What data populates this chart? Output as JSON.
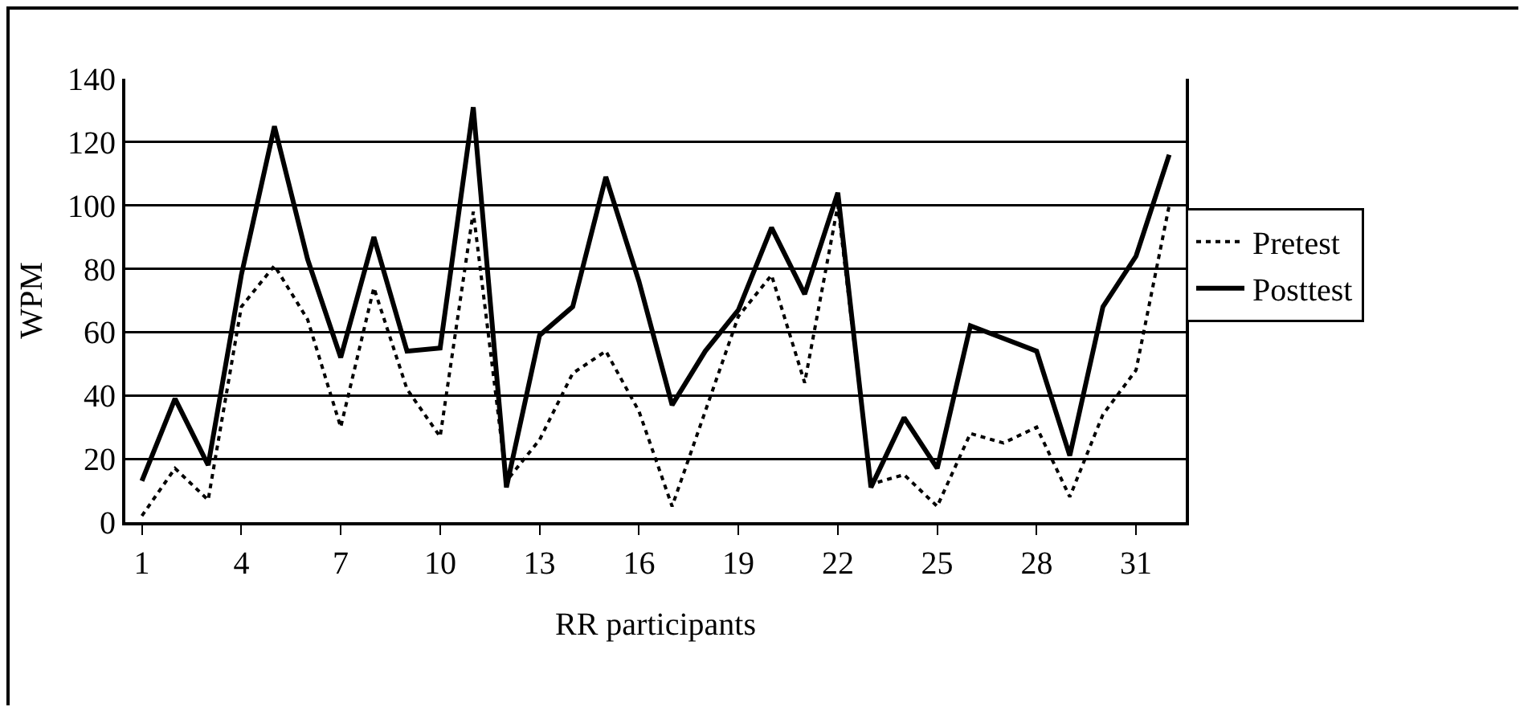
{
  "chart_data": {
    "type": "line",
    "xlabel": "RR participants",
    "ylabel": "WPM",
    "x": [
      1,
      2,
      3,
      4,
      5,
      6,
      7,
      8,
      9,
      10,
      11,
      12,
      13,
      14,
      15,
      16,
      17,
      18,
      19,
      20,
      21,
      22,
      23,
      24,
      25,
      26,
      27,
      28,
      29,
      30,
      31,
      32
    ],
    "series": [
      {
        "name": "Pretest",
        "color": "#000000",
        "line_style": "dotted",
        "values": [
          2,
          17,
          7,
          68,
          81,
          64,
          30,
          74,
          42,
          27,
          98,
          13,
          26,
          47,
          54,
          35,
          5,
          35,
          65,
          78,
          44,
          100,
          12,
          15,
          5,
          28,
          25,
          30,
          8,
          34,
          48,
          100
        ]
      },
      {
        "name": "Posttest",
        "color": "#000000",
        "line_style": "solid",
        "values": [
          13,
          39,
          18,
          78,
          125,
          83,
          52,
          90,
          54,
          55,
          131,
          11,
          59,
          68,
          109,
          76,
          37,
          54,
          67,
          93,
          72,
          104,
          11,
          33,
          17,
          62,
          58,
          54,
          21,
          68,
          84,
          116
        ]
      }
    ],
    "xlim": [
      0.5,
      32.5
    ],
    "xticks": [
      1,
      4,
      7,
      10,
      13,
      16,
      19,
      22,
      25,
      28,
      31
    ],
    "ylim": [
      0,
      140
    ],
    "yticks": [
      0,
      20,
      40,
      60,
      80,
      100,
      120,
      140
    ],
    "grid": "y",
    "legend": "right",
    "marker": "none"
  }
}
